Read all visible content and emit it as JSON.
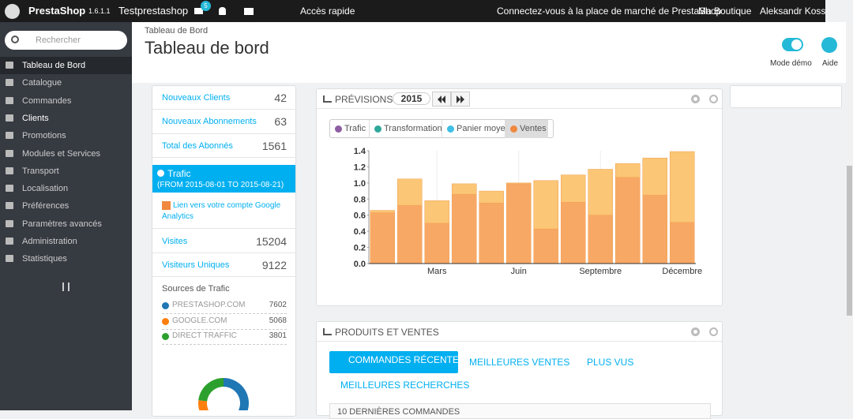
{
  "topbar": {
    "brand": "PrestaShop",
    "version": "1.6.1.1",
    "shop": "Testprestashop",
    "cart_badge": "5",
    "quick_access": "Accès rapide",
    "marketplace": "Connectez-vous à la place de marché de PrestaShop",
    "my_shop": "Ma Boutique",
    "user": "Aleksandr Koss"
  },
  "sidebar": {
    "search_placeholder": "Rechercher",
    "menu": [
      "Tableau de Bord",
      "Catalogue",
      "Commandes",
      "Clients",
      "Promotions",
      "Modules et Services",
      "Transport",
      "Localisation",
      "Préférences",
      "Paramètres avancés",
      "Administration",
      "Statistiques"
    ]
  },
  "header": {
    "breadcrumb": "Tableau de Bord",
    "title": "Tableau de bord",
    "demo_mode": "Mode démo",
    "help": "Aide"
  },
  "customers_panel": {
    "rows": [
      {
        "label": "Nouveaux Clients",
        "value": 42
      },
      {
        "label": "Nouveaux Abonnements",
        "value": 63
      },
      {
        "label": "Total des Abonnés",
        "value": 1561
      }
    ]
  },
  "traffic_panel": {
    "title": "Trafic",
    "period": "(FROM 2015-08-01 TO 2015-08-21)",
    "ga_link": "Lien vers votre compte Google Analytics",
    "rows": [
      {
        "label": "Visites",
        "value": 15204
      },
      {
        "label": "Visiteurs Uniques",
        "value": 9122
      }
    ]
  },
  "forecast_panel": {
    "title": "PRÉVISIONS",
    "year": "2015",
    "legend": [
      {
        "name": "Trafic",
        "color": "#8e5ea2"
      },
      {
        "name": "Transformation",
        "color": "#2ea89a"
      },
      {
        "name": "Panier moyen",
        "color": "#3fbfe5"
      },
      {
        "name": "Ventes",
        "color": "#f0883e",
        "active": true
      }
    ]
  },
  "sales_panel": {
    "title": "PRODUITS ET VENTES",
    "tabs": [
      "COMMANDES RÉCENTES",
      "MEILLEURES VENTES",
      "PLUS VUS",
      "MEILLEURES RECHERCHES"
    ],
    "subtitle": "10 DERNIÈRES COMMANDES"
  },
  "chart_data": [
    {
      "type": "bar",
      "stacked": true,
      "categories": [
        null,
        null,
        "Mars",
        null,
        null,
        "Juin",
        null,
        null,
        "Septembre",
        null,
        null,
        "Décembre"
      ],
      "series": [
        {
          "color": "#f8a865",
          "values": [
            0.63,
            0.72,
            0.5,
            0.86,
            0.75,
            0.99,
            0.43,
            0.76,
            0.6,
            1.07,
            0.85,
            0.51
          ]
        },
        {
          "color": "#fbc676",
          "values": [
            0.03,
            0.33,
            0.28,
            0.13,
            0.15,
            0.01,
            0.6,
            0.34,
            0.57,
            0.17,
            0.46,
            0.88
          ]
        }
      ],
      "ylim": [
        0,
        1.4
      ],
      "yticks": [
        {
          "value": 0,
          "label": "0.0"
        },
        0.2,
        0.4,
        0.6,
        0.8,
        {
          "value": 1,
          "label": "1.0"
        },
        1.2,
        1.4
      ]
    },
    {
      "type": "donut",
      "title": "Sources de Trafic",
      "categories": [
        "PRESTASHOP.COM",
        "GOOGLE.COM",
        "DIRECT TRAFFIC"
      ],
      "values": [
        7602,
        5068,
        3801
      ],
      "colors": [
        "#1f77b4",
        "#ff7f0e",
        "#2ca02c"
      ]
    }
  ]
}
